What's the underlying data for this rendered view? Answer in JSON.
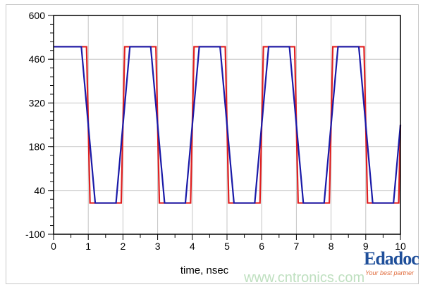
{
  "chart_data": {
    "type": "line",
    "title": "",
    "xlabel": "time, nsec",
    "ylabel": "",
    "xlim": [
      0,
      10
    ],
    "ylim": [
      -100,
      600
    ],
    "xticks": [
      0,
      1,
      2,
      3,
      4,
      5,
      6,
      7,
      8,
      9,
      10
    ],
    "yticks": [
      -100,
      40,
      180,
      320,
      460,
      600
    ],
    "grid": true,
    "series": [
      {
        "color": "#e02020",
        "points": [
          [
            0,
            500
          ],
          [
            0.95,
            500
          ],
          [
            1.05,
            0
          ],
          [
            1.95,
            0
          ],
          [
            2.05,
            500
          ],
          [
            2.95,
            500
          ],
          [
            3.05,
            0
          ],
          [
            3.95,
            0
          ],
          [
            4.05,
            500
          ],
          [
            4.95,
            500
          ],
          [
            5.05,
            0
          ],
          [
            5.95,
            0
          ],
          [
            6.05,
            500
          ],
          [
            6.95,
            500
          ],
          [
            7.05,
            0
          ],
          [
            7.95,
            0
          ],
          [
            8.05,
            500
          ],
          [
            8.95,
            500
          ],
          [
            9.05,
            0
          ],
          [
            9.95,
            0
          ],
          [
            10,
            250
          ]
        ]
      },
      {
        "color": "#1a1aa8",
        "points": [
          [
            0,
            500
          ],
          [
            0.8,
            500
          ],
          [
            1.2,
            0
          ],
          [
            1.8,
            0
          ],
          [
            2.2,
            500
          ],
          [
            2.8,
            500
          ],
          [
            3.2,
            0
          ],
          [
            3.8,
            0
          ],
          [
            4.2,
            500
          ],
          [
            4.8,
            500
          ],
          [
            5.2,
            0
          ],
          [
            5.8,
            0
          ],
          [
            6.2,
            500
          ],
          [
            6.8,
            500
          ],
          [
            7.2,
            0
          ],
          [
            7.8,
            0
          ],
          [
            8.2,
            500
          ],
          [
            8.8,
            500
          ],
          [
            9.2,
            0
          ],
          [
            9.8,
            0
          ],
          [
            10,
            250
          ]
        ]
      }
    ]
  },
  "watermark": {
    "logo": "Edadoc",
    "tagline": "Your best partner",
    "site": "www.cntronics.com"
  }
}
